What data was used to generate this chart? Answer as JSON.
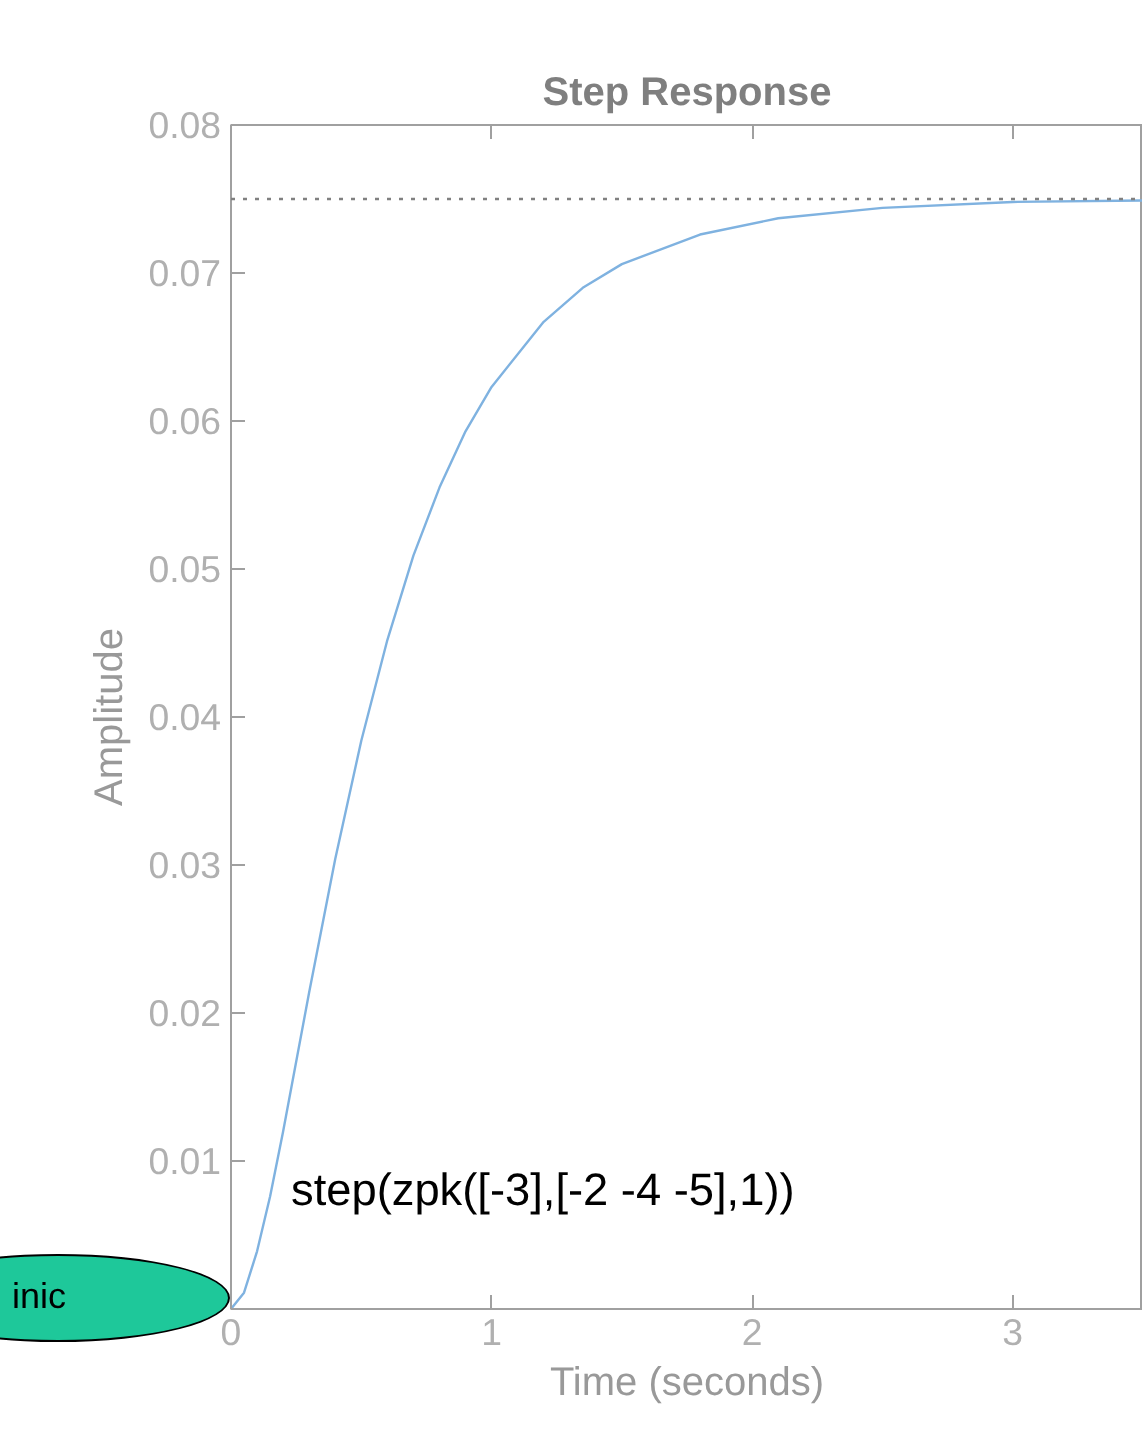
{
  "chart_data": {
    "type": "line",
    "title": "Step Response",
    "xlabel": "Time (seconds)",
    "ylabel": "Amplitude",
    "x": [
      0,
      0.05,
      0.1,
      0.15,
      0.2,
      0.3,
      0.4,
      0.5,
      0.6,
      0.7,
      0.8,
      0.9,
      1.0,
      1.2,
      1.35,
      1.5,
      1.8,
      2.1,
      2.5,
      3.0,
      3.5
    ],
    "series": [
      {
        "color": "#7fb2e0",
        "values": [
          0,
          0.0011,
          0.0039,
          0.0076,
          0.012,
          0.0214,
          0.0304,
          0.0384,
          0.0452,
          0.0509,
          0.0555,
          0.0593,
          0.0623,
          0.0667,
          0.069,
          0.0706,
          0.0726,
          0.0737,
          0.0744,
          0.0748,
          0.0749
        ]
      }
    ],
    "xlim": [
      0,
      3.5
    ],
    "xticks": [
      0,
      1,
      2,
      3
    ],
    "ylim": [
      0,
      0.08
    ],
    "yticks": [
      {
        "value": 0,
        "label": null
      },
      0.01,
      0.02,
      0.03,
      0.04,
      0.05,
      0.06,
      0.07,
      0.08
    ],
    "ref_lines": [
      {
        "axis": "y",
        "value": 0.075,
        "color": "#808080",
        "line_style": "dotted"
      }
    ],
    "annotations": [
      "step(zpk([-3],[-2 -4 -5],1))",
      "inic"
    ],
    "grid": false,
    "marker": "none",
    "line_style": "solid"
  }
}
